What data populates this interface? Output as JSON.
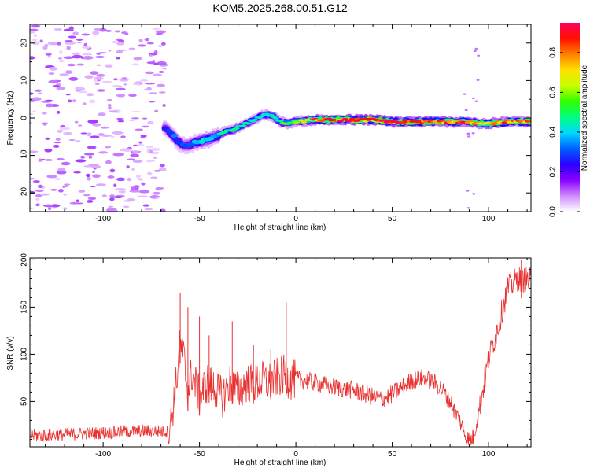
{
  "title": "KOM5.2025.268.00.51.G12",
  "chart_data": [
    {
      "type": "heatmap",
      "title": "KOM5.2025.268.00.51.G12",
      "xlabel": "Height of straight line (km)",
      "ylabel": "Frequency (Hz)",
      "xlim": [
        -138,
        122
      ],
      "ylim": [
        -25,
        25
      ],
      "xticks": [
        -100,
        -50,
        0,
        50,
        100
      ],
      "yticks": [
        -20,
        -10,
        0,
        10,
        20
      ],
      "colorbar": {
        "label": "Normalized spectral amplitude",
        "range": [
          0,
          0.95
        ],
        "ticks": [
          0.0,
          0.2,
          0.4,
          0.6,
          0.8
        ],
        "colors": [
          "#ffffff",
          "#d08cff",
          "#8a00ff",
          "#2a00ff",
          "#0060ff",
          "#00d8ff",
          "#00ff80",
          "#30ff00",
          "#c8ff00",
          "#ffe000",
          "#ff8000",
          "#ff1000",
          "#ff0060"
        ]
      },
      "ridge": {
        "x": [
          -68,
          -64,
          -60,
          -56,
          -52,
          -48,
          -44,
          -40,
          -36,
          -32,
          -28,
          -24,
          -20,
          -16,
          -12,
          -8,
          -4,
          0,
          10,
          20,
          30,
          40,
          50,
          60,
          70,
          80,
          90,
          95,
          100,
          110,
          122
        ],
        "y": [
          -2.5,
          -4.5,
          -7,
          -7.5,
          -6.5,
          -6,
          -5.5,
          -4.5,
          -3.5,
          -3,
          -2,
          -1,
          0,
          1,
          0.5,
          -1,
          -1.5,
          -1,
          -0.5,
          -0.5,
          -0.5,
          -0.5,
          -1,
          -1,
          -1,
          -1,
          -1,
          -1.5,
          -1.5,
          -1,
          -1
        ],
        "amp": [
          0.25,
          0.3,
          0.3,
          0.3,
          0.35,
          0.4,
          0.4,
          0.4,
          0.45,
          0.45,
          0.4,
          0.4,
          0.4,
          0.45,
          0.45,
          0.5,
          0.5,
          0.55,
          0.75,
          0.85,
          0.9,
          0.95,
          0.9,
          0.85,
          0.85,
          0.8,
          0.8,
          0.75,
          0.8,
          0.8,
          0.75
        ]
      },
      "noise_region_x": [
        -138,
        -68
      ]
    },
    {
      "type": "line",
      "xlabel": "Height of straight line (km)",
      "ylabel": "SNR (v/v)",
      "xlim": [
        -138,
        122
      ],
      "ylim": [
        2,
        202
      ],
      "xticks": [
        -100,
        -50,
        0,
        50,
        100
      ],
      "yticks": [
        50,
        100,
        150,
        200
      ],
      "color": "#e8302f",
      "series": [
        {
          "name": "SNR",
          "x": [
            -138,
            -120,
            -100,
            -80,
            -66,
            -64,
            -62,
            -60,
            -58,
            -56,
            -54,
            -50,
            -46,
            -42,
            -38,
            -34,
            -30,
            -26,
            -22,
            -18,
            -14,
            -10,
            -6,
            -2,
            0,
            10,
            20,
            30,
            40,
            45,
            50,
            55,
            60,
            65,
            70,
            75,
            80,
            85,
            88,
            90,
            92,
            95,
            100,
            105,
            110,
            115,
            122
          ],
          "y": [
            14,
            15,
            17,
            19,
            18,
            40,
            70,
            110,
            95,
            60,
            80,
            55,
            70,
            65,
            55,
            70,
            60,
            70,
            68,
            72,
            70,
            75,
            78,
            72,
            74,
            70,
            65,
            62,
            55,
            52,
            58,
            65,
            72,
            75,
            72,
            65,
            50,
            30,
            15,
            8,
            12,
            40,
            95,
            130,
            170,
            180,
            178
          ]
        }
      ],
      "spikes": [
        {
          "x": -60,
          "y": 165
        },
        {
          "x": -56,
          "y": 150
        },
        {
          "x": -50,
          "y": 140
        },
        {
          "x": -45,
          "y": 120
        },
        {
          "x": -33,
          "y": 135
        },
        {
          "x": -22,
          "y": 110
        },
        {
          "x": -13,
          "y": 105
        },
        {
          "x": -5,
          "y": 155
        },
        {
          "x": 117,
          "y": 200
        }
      ]
    }
  ]
}
